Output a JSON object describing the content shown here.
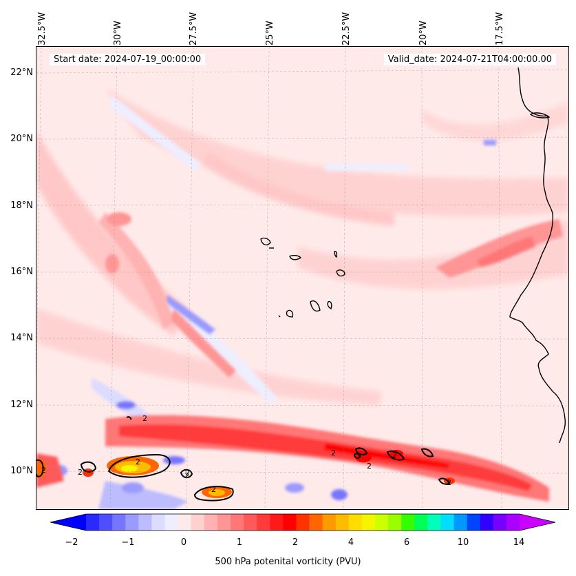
{
  "header": {
    "start_date": "Start date: 2024-07-19_00:00:00",
    "valid_date": "Valid_date: 2024-07-21T04:00:00.00"
  },
  "axes": {
    "lon_ticks": [
      "32.5°W",
      "30°W",
      "27.5°W",
      "25°W",
      "22.5°W",
      "20°W",
      "17.5°W"
    ],
    "lat_ticks": [
      "22°N",
      "20°N",
      "18°N",
      "16°N",
      "14°N",
      "12°N",
      "10°N"
    ]
  },
  "contour_labels": [
    "2",
    "2",
    "2",
    "2",
    "2",
    "2",
    "2",
    "2",
    "2",
    "2",
    "2"
  ],
  "colorbar": {
    "label": "500 hPa potenital vorticity (PVU)",
    "tick_labels": [
      "−2",
      "−1",
      "0",
      "1",
      "2",
      "4",
      "6",
      "10",
      "14"
    ],
    "colors": [
      "#0000ff",
      "#2a2aff",
      "#4f4fff",
      "#7575ff",
      "#9a9aff",
      "#bcbcff",
      "#dcdcff",
      "#eeeeff",
      "#ffeaea",
      "#ffd0d0",
      "#ffb2b2",
      "#ff9595",
      "#ff7777",
      "#ff5a5a",
      "#ff3a3a",
      "#ff1a1a",
      "#ff0000",
      "#ff3300",
      "#ff6600",
      "#ff9900",
      "#ffbb00",
      "#ffdd00",
      "#f5f500",
      "#ccff00",
      "#99ff00",
      "#33ff00",
      "#00ff55",
      "#00ffbb",
      "#00ddff",
      "#0099ff",
      "#0044ff",
      "#3300ff",
      "#7700ff",
      "#aa00ff",
      "#cc00ff"
    ]
  },
  "colors": {
    "background_pv": "#fff0f0",
    "coast": "#000000"
  }
}
